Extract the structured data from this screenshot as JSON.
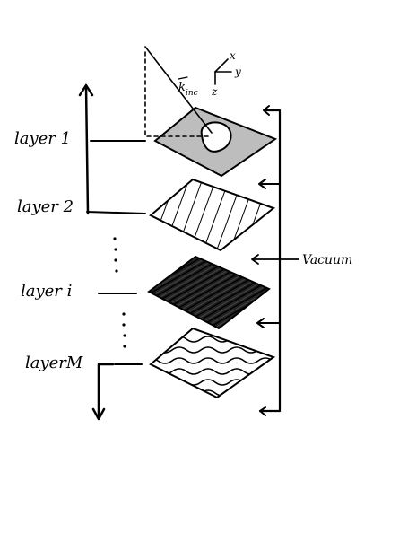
{
  "layers": [
    {
      "label": "layer 1",
      "pattern": "gray-with-hole"
    },
    {
      "label": "layer 2",
      "pattern": "diagonal-hatch"
    },
    {
      "label": "layer i",
      "pattern": "dense-dark-scribble"
    },
    {
      "label": "layerM",
      "pattern": "wavy-lines"
    }
  ],
  "vacuum_label": "Vacuum",
  "axes": {
    "x": "x",
    "y": "y",
    "z": "z"
  },
  "wave_vector_label": "k",
  "wave_vector_subscript": "inc",
  "colors": {
    "ink": "#000000",
    "layer1_fill": "#bdbdbd",
    "layer_i_fill": "#1a1a1a"
  }
}
